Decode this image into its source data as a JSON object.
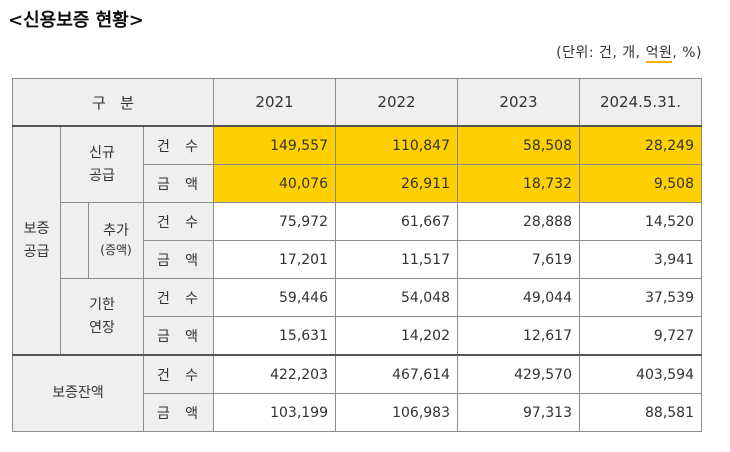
{
  "title": "<신용보증 현황>",
  "unit": {
    "prefix": "(단위: 건, 개, ",
    "highlight": "억원",
    "suffix": ", %)"
  },
  "table": {
    "header_label": "구   분",
    "years": [
      "2021",
      "2022",
      "2023",
      "2024.5.31."
    ],
    "group_main": "보증\n공급",
    "group_new": "신규\n공급",
    "group_add_1": "추가",
    "group_add_2": "(증액)",
    "group_ext": "기한\n연장",
    "group_balance": "보증잔액",
    "label_count": [
      "건",
      "수"
    ],
    "label_amount": [
      "금",
      "액"
    ],
    "rows": {
      "new_count": [
        "149,557",
        "110,847",
        "58,508",
        "28,249"
      ],
      "new_amount": [
        "40,076",
        "26,911",
        "18,732",
        "9,508"
      ],
      "add_count": [
        "75,972",
        "61,667",
        "28,888",
        "14,520"
      ],
      "add_amount": [
        "17,201",
        "11,517",
        "7,619",
        "3,941"
      ],
      "ext_count": [
        "59,446",
        "54,048",
        "49,044",
        "37,539"
      ],
      "ext_amount": [
        "15,631",
        "14,202",
        "12,617",
        "9,727"
      ],
      "bal_count": [
        "422,203",
        "467,614",
        "429,570",
        "403,594"
      ],
      "bal_amount": [
        "103,199",
        "106,983",
        "97,313",
        "88,581"
      ]
    },
    "highlight_color": "#ffd000"
  }
}
